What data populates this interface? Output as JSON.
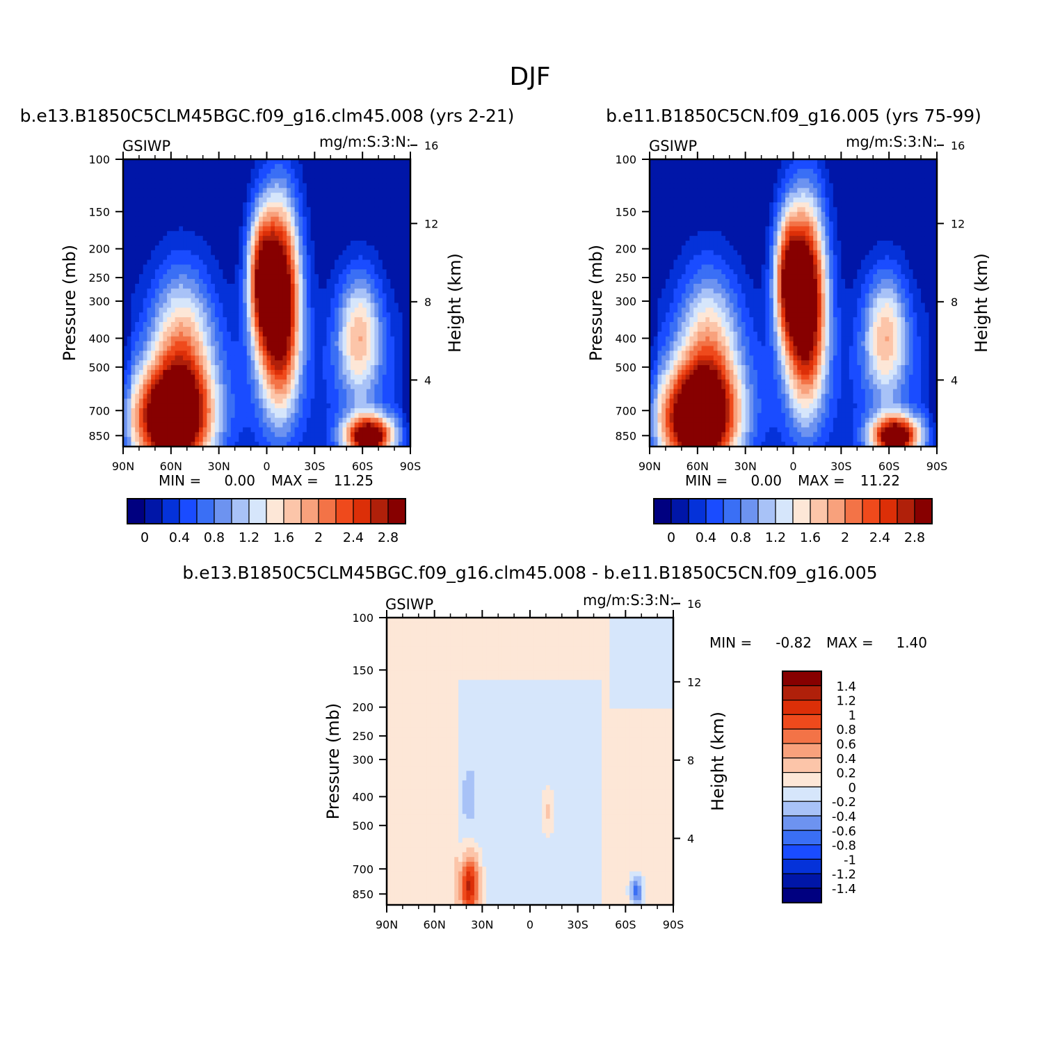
{
  "figure": {
    "title": "DJF"
  },
  "colors": {
    "absolute_scale": [
      "#000080",
      "#0016a8",
      "#0532d9",
      "#1a4cff",
      "#3a6ff5",
      "#6d93f0",
      "#a8c2f7",
      "#d6e6fb",
      "#fde7d7",
      "#fcc5a9",
      "#f8a17c",
      "#f37347",
      "#ef4a1c",
      "#dc2f08",
      "#b0200a",
      "#870000"
    ],
    "diff_scale": [
      "#870000",
      "#b0200a",
      "#dc2f08",
      "#ef4a1c",
      "#f37347",
      "#f8a17c",
      "#fcc5a9",
      "#fde7d7",
      "#d6e6fb",
      "#a8c2f7",
      "#6d93f0",
      "#3a6ff5",
      "#1a4cff",
      "#0532d9",
      "#0016a8",
      "#000080"
    ]
  },
  "chart_data": [
    {
      "type": "heatmap",
      "title": "b.e13.B1850C5CLM45BGC.f09_g16.clm45.008 (yrs 2-21)",
      "left_label": "GSIWP",
      "right_label": "mg/m:S:3:N:",
      "xlabel": "",
      "ylabel": "Pressure (mb)",
      "y2label": "Height (km)",
      "x_ticks": [
        "90N",
        "60N",
        "30N",
        "0",
        "30S",
        "60S",
        "90S"
      ],
      "y_ticks": [
        "100",
        "150",
        "200",
        "250",
        "300",
        "400",
        "500",
        "700",
        "850"
      ],
      "y2_ticks": [
        "16",
        "12",
        "8",
        "4"
      ],
      "ylim": [
        100,
        925
      ],
      "y_scale": "log",
      "min_label": "MIN =",
      "min_value": "0.00",
      "max_label": "MAX =",
      "max_value": "11.25",
      "colorbar": {
        "orientation": "horizontal",
        "labels": [
          "0",
          "0.4",
          "0.8",
          "1.2",
          "1.6",
          "2",
          "2.4",
          "2.8"
        ]
      },
      "features": [
        {
          "lat": 60,
          "p": 760,
          "amp": 3.4,
          "slat": 17,
          "sp": 0.28
        },
        {
          "lat": 53,
          "p": 440,
          "amp": 1.7,
          "slat": 14,
          "sp": 0.45
        },
        {
          "lat": -8,
          "p": 300,
          "amp": 3.6,
          "slat": 9,
          "sp": 0.55
        },
        {
          "lat": 4,
          "p": 250,
          "amp": 2.0,
          "slat": 6,
          "sp": 0.35
        },
        {
          "lat": -58,
          "p": 390,
          "amp": 1.6,
          "slat": 10,
          "sp": 0.35
        },
        {
          "lat": -64,
          "p": 860,
          "amp": 3.2,
          "slat": 11,
          "sp": 0.12
        }
      ]
    },
    {
      "type": "heatmap",
      "title": "b.e11.B1850C5CN.f09_g16.005 (yrs 75-99)",
      "left_label": "GSIWP",
      "right_label": "mg/m:S:3:N:",
      "xlabel": "",
      "ylabel": "Pressure (mb)",
      "y2label": "Height (km)",
      "x_ticks": [
        "90N",
        "60N",
        "30N",
        "0",
        "30S",
        "60S",
        "90S"
      ],
      "y_ticks": [
        "100",
        "150",
        "200",
        "250",
        "300",
        "400",
        "500",
        "700",
        "850"
      ],
      "y2_ticks": [
        "16",
        "12",
        "8",
        "4"
      ],
      "ylim": [
        100,
        925
      ],
      "y_scale": "log",
      "min_label": "MIN =",
      "min_value": "0.00",
      "max_label": "MAX =",
      "max_value": "11.22",
      "colorbar": {
        "orientation": "horizontal",
        "labels": [
          "0",
          "0.4",
          "0.8",
          "1.2",
          "1.6",
          "2",
          "2.4",
          "2.8"
        ]
      },
      "features": [
        {
          "lat": 60,
          "p": 760,
          "amp": 3.4,
          "slat": 17,
          "sp": 0.28
        },
        {
          "lat": 53,
          "p": 440,
          "amp": 1.6,
          "slat": 14,
          "sp": 0.45
        },
        {
          "lat": -8,
          "p": 300,
          "amp": 3.5,
          "slat": 9,
          "sp": 0.55
        },
        {
          "lat": 4,
          "p": 250,
          "amp": 2.0,
          "slat": 6,
          "sp": 0.35
        },
        {
          "lat": -58,
          "p": 390,
          "amp": 1.6,
          "slat": 10,
          "sp": 0.35
        },
        {
          "lat": -64,
          "p": 860,
          "amp": 3.2,
          "slat": 11,
          "sp": 0.12
        }
      ]
    },
    {
      "type": "heatmap",
      "title": "b.e13.B1850C5CLM45BGC.f09_g16.clm45.008 - b.e11.B1850C5CN.f09_g16.005",
      "left_label": "GSIWP",
      "right_label": "mg/m:S:3:N:",
      "xlabel": "",
      "ylabel": "Pressure (mb)",
      "y2label": "Height (km)",
      "x_ticks": [
        "90N",
        "60N",
        "30N",
        "0",
        "30S",
        "60S",
        "90S"
      ],
      "y_ticks": [
        "100",
        "150",
        "200",
        "250",
        "300",
        "400",
        "500",
        "700",
        "850"
      ],
      "y2_ticks": [
        "16",
        "12",
        "8",
        "4"
      ],
      "ylim": [
        100,
        925
      ],
      "y_scale": "log",
      "min_label": "MIN =",
      "min_value": "-0.82",
      "max_label": "MAX =",
      "max_value": "1.40",
      "colorbar": {
        "orientation": "vertical",
        "labels": [
          "1.4",
          "1.2",
          "1",
          "0.8",
          "0.6",
          "0.4",
          "0.2",
          "0",
          "-0.2",
          "-0.4",
          "-0.6",
          "-0.8",
          "-1",
          "-1.2",
          "-1.4"
        ]
      },
      "features": [
        {
          "lat": 38,
          "p": 800,
          "amp": 1.35,
          "slat": 4.5,
          "sp": 0.17
        },
        {
          "lat": -11,
          "p": 450,
          "amp": 0.35,
          "slat": 3,
          "sp": 0.12
        },
        {
          "lat": -67,
          "p": 830,
          "amp": -0.75,
          "slat": 3,
          "sp": 0.08
        },
        {
          "lat": 38,
          "p": 400,
          "amp": -0.25,
          "slat": 3,
          "sp": 0.15
        }
      ]
    }
  ]
}
